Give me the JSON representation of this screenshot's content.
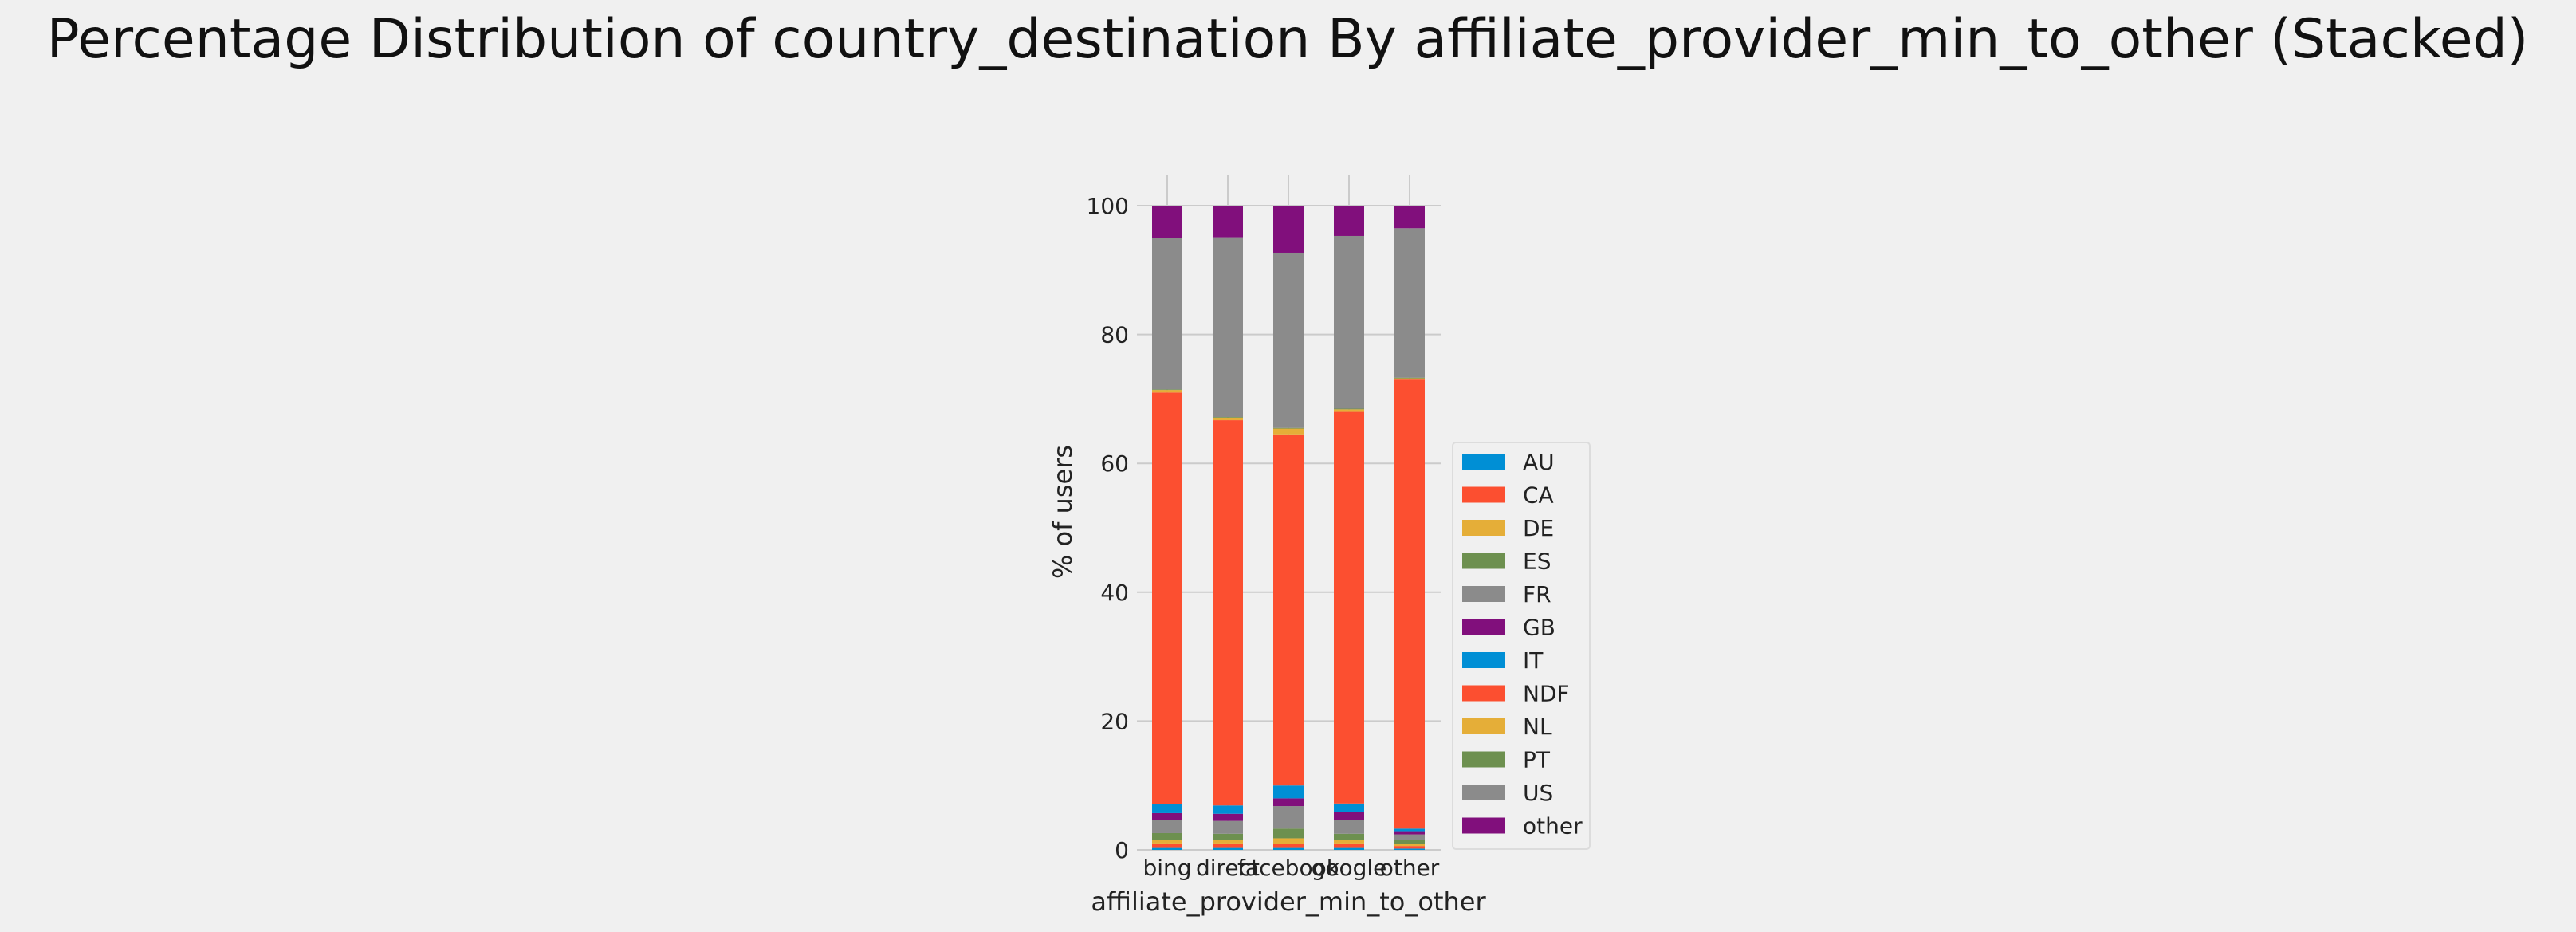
{
  "chart_data": {
    "type": "bar",
    "stacked": true,
    "title": "Percentage Distribution of country_destination By affiliate_provider_min_to_other (Stacked)",
    "xlabel": "affiliate_provider_min_to_other",
    "ylabel": "% of users",
    "ylim": [
      0,
      100
    ],
    "yticks": [
      0,
      20,
      40,
      60,
      80,
      100
    ],
    "grid": true,
    "legend_position": "lower-right-outside",
    "categories": [
      "bing",
      "direct",
      "facebook",
      "google",
      "other"
    ],
    "series": [
      {
        "name": "AU",
        "color": "#008fd5",
        "values": [
          0.3,
          0.3,
          0.3,
          0.3,
          0.2
        ]
      },
      {
        "name": "CA",
        "color": "#fc4f30",
        "values": [
          0.7,
          0.7,
          0.6,
          0.7,
          0.4
        ]
      },
      {
        "name": "DE",
        "color": "#e5ae38",
        "values": [
          0.6,
          0.5,
          0.9,
          0.5,
          0.3
        ]
      },
      {
        "name": "ES",
        "color": "#6d904f",
        "values": [
          1.0,
          1.0,
          1.5,
          1.0,
          0.6
        ]
      },
      {
        "name": "FR",
        "color": "#8b8b8b",
        "values": [
          2.0,
          2.0,
          3.5,
          2.2,
          0.9
        ]
      },
      {
        "name": "GB",
        "color": "#810f7c",
        "values": [
          1.1,
          1.1,
          1.2,
          1.2,
          0.5
        ]
      },
      {
        "name": "IT",
        "color": "#008fd5",
        "values": [
          1.4,
          1.3,
          2.0,
          1.3,
          0.4
        ]
      },
      {
        "name": "NDF",
        "color": "#fc4f30",
        "values": [
          63.9,
          59.8,
          54.5,
          60.8,
          69.7
        ]
      },
      {
        "name": "NL",
        "color": "#e5ae38",
        "values": [
          0.4,
          0.4,
          0.9,
          0.4,
          0.2
        ]
      },
      {
        "name": "PT",
        "color": "#6d904f",
        "values": [
          0.1,
          0.1,
          0.1,
          0.1,
          0.1
        ]
      },
      {
        "name": "US",
        "color": "#8b8b8b",
        "values": [
          23.5,
          27.9,
          27.2,
          26.8,
          23.2
        ]
      },
      {
        "name": "other",
        "color": "#810f7c",
        "values": [
          5.0,
          4.9,
          7.3,
          4.7,
          3.5
        ]
      }
    ]
  }
}
